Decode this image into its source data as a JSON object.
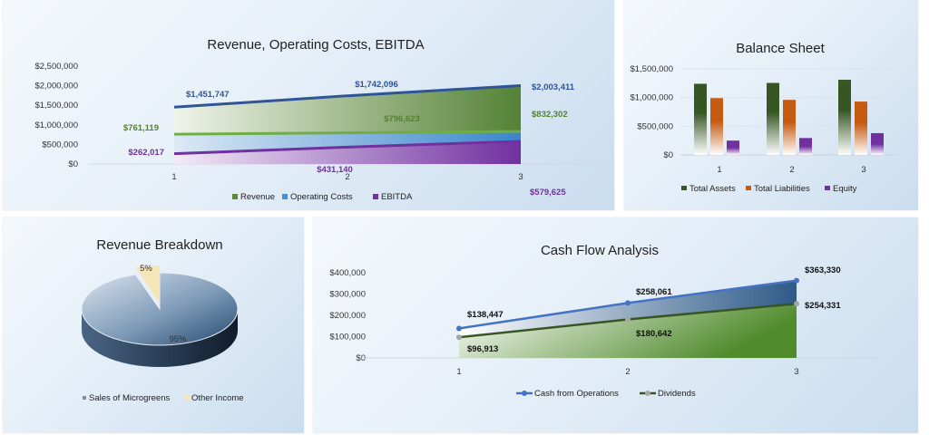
{
  "chart_data": [
    {
      "id": "revenue-costs-ebitda",
      "type": "area",
      "title": "Revenue, Operating Costs, EBITDA",
      "categories": [
        "1",
        "2",
        "3"
      ],
      "ylim": [
        0,
        2500000
      ],
      "yticks": [
        "$0",
        "$500,000",
        "$1,000,000",
        "$1,500,000",
        "$2,000,000",
        "$2,500,000"
      ],
      "legend_position": "bottom",
      "series": [
        {
          "name": "Revenue",
          "values": [
            1451747,
            1742096,
            2003411
          ],
          "labels": [
            "$1,451,747",
            "$1,742,096",
            "$2,003,411"
          ],
          "color": "#5a8a3a",
          "line_color": "#2f5597"
        },
        {
          "name": "Operating Costs",
          "values": [
            761119,
            796623,
            832302
          ],
          "labels": [
            "$761,119",
            "$796,623",
            "$832,302"
          ],
          "color": "#4a90d0",
          "line_color": "#70ad47"
        },
        {
          "name": "EBITDA",
          "values": [
            262017,
            431140,
            579625
          ],
          "labels": [
            "$262,017",
            "$431,140",
            "$579,625"
          ],
          "color": "#7030a0",
          "line_color": "#7030a0"
        }
      ]
    },
    {
      "id": "balance-sheet",
      "type": "bar",
      "title": "Balance Sheet",
      "categories": [
        "1",
        "2",
        "3"
      ],
      "ylim": [
        0,
        1500000
      ],
      "yticks": [
        "$0",
        "$500,000",
        "$1,000,000",
        "$1,500,000"
      ],
      "legend_position": "bottom",
      "series": [
        {
          "name": "Total Assets",
          "values": [
            1240000,
            1255000,
            1310000
          ],
          "color": "#375623"
        },
        {
          "name": "Total Liabilities",
          "values": [
            990000,
            960000,
            930000
          ],
          "color": "#c55a11"
        },
        {
          "name": "Equity",
          "values": [
            250000,
            295000,
            380000
          ],
          "color": "#7030a0"
        }
      ]
    },
    {
      "id": "revenue-breakdown",
      "type": "pie",
      "title": "Revenue Breakdown",
      "legend_position": "bottom",
      "slices": [
        {
          "name": "Sales of Microgreens",
          "value": 95,
          "label": "95%",
          "color": "#2e4f73"
        },
        {
          "name": "Other Income",
          "value": 5,
          "label": "5%",
          "color": "#f5e6b8"
        }
      ]
    },
    {
      "id": "cash-flow",
      "type": "line",
      "title": "Cash Flow Analysis",
      "categories": [
        "1",
        "2",
        "3"
      ],
      "ylim": [
        0,
        400000
      ],
      "yticks": [
        "$0",
        "$100,000",
        "$200,000",
        "$300,000",
        "$400,000"
      ],
      "legend_position": "bottom",
      "series": [
        {
          "name": "Cash from Operations",
          "values": [
            138447,
            258061,
            363330
          ],
          "labels": [
            "$138,447",
            "$258,061",
            "$363,330"
          ],
          "color": "#4472c4"
        },
        {
          "name": "Dividends",
          "values": [
            96913,
            180642,
            254331
          ],
          "labels": [
            "$96,913",
            "$180,642",
            "$254,331"
          ],
          "color": "#375623",
          "marker_color": "#a5a5a5"
        }
      ]
    }
  ]
}
